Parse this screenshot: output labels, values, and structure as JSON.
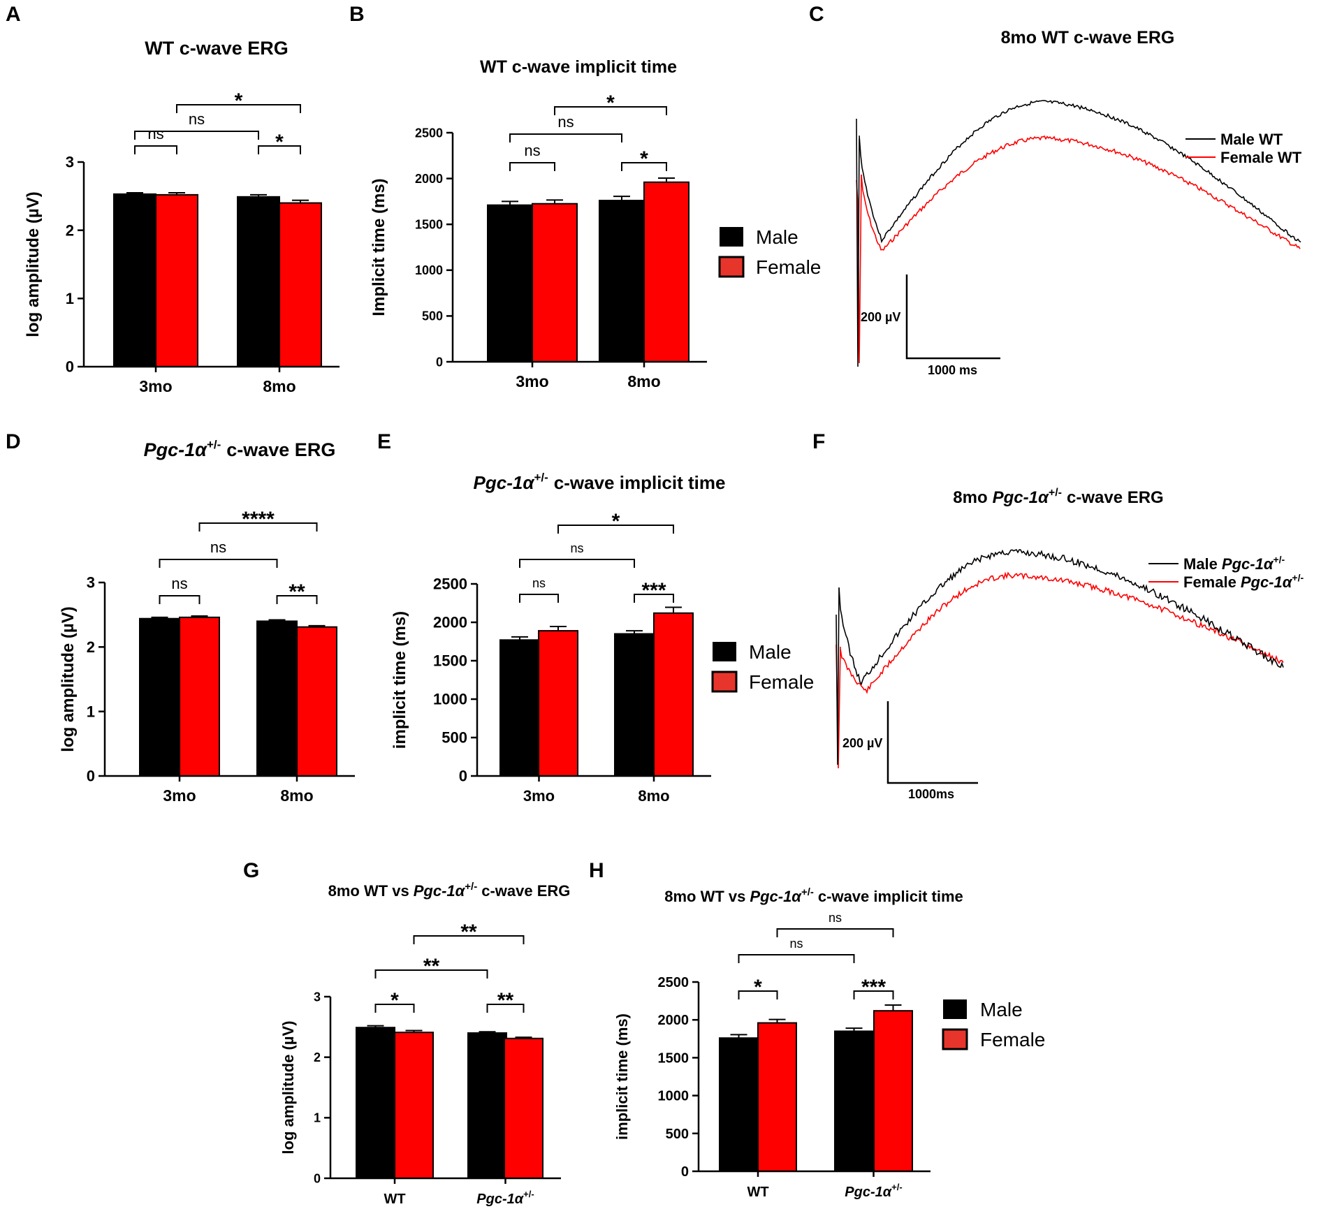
{
  "panel_labels": [
    "A",
    "B",
    "C",
    "D",
    "E",
    "F",
    "G",
    "H"
  ],
  "colors": {
    "male": "#000000",
    "female": "#ff0000",
    "female_legend": "#e8352b"
  },
  "legend": {
    "male": "Male",
    "female": "Female"
  },
  "chart_data": [
    {
      "id": "A",
      "type": "bar",
      "title": "WT c-wave ERG",
      "ylabel": "log amplitude (µV)",
      "ylim": [
        0,
        3
      ],
      "yticks": [
        "0",
        "1",
        "2",
        "3"
      ],
      "categories": [
        "3mo",
        "8mo"
      ],
      "series": [
        {
          "name": "Male",
          "values": [
            2.53,
            2.49
          ],
          "errors": [
            0.02,
            0.03
          ]
        },
        {
          "name": "Female",
          "values": [
            2.52,
            2.4
          ],
          "errors": [
            0.03,
            0.04
          ]
        }
      ],
      "comparisons": [
        {
          "label": "ns",
          "pair": "3mo male vs 3mo female"
        },
        {
          "label": "*",
          "pair": "8mo male vs 8mo female"
        },
        {
          "label": "ns",
          "pair": "3mo male vs 8mo male"
        },
        {
          "label": "*",
          "pair": "3mo female vs 8mo female"
        }
      ]
    },
    {
      "id": "B",
      "type": "bar",
      "title": "WT  c-wave implicit time",
      "ylabel": "Implicit time  (ms)",
      "ylim": [
        0,
        2500
      ],
      "yticks": [
        "0",
        "500",
        "1000",
        "1500",
        "2000",
        "2500"
      ],
      "categories": [
        "3mo",
        "8mo"
      ],
      "series": [
        {
          "name": "Male",
          "values": [
            1710,
            1760
          ],
          "errors": [
            40,
            45
          ]
        },
        {
          "name": "Female",
          "values": [
            1725,
            1960
          ],
          "errors": [
            40,
            45
          ]
        }
      ],
      "comparisons": [
        {
          "label": "ns",
          "pair": "3mo male vs 3mo female"
        },
        {
          "label": "*",
          "pair": "8mo male vs 8mo female"
        },
        {
          "label": "ns",
          "pair": "3mo male vs 8mo male"
        },
        {
          "label": "*",
          "pair": "3mo female vs 8mo female"
        }
      ]
    },
    {
      "id": "C",
      "type": "line",
      "title": "8mo WT c-wave ERG",
      "legend": [
        "Male WT",
        "Female WT"
      ],
      "scalebar": {
        "y": "200 µV",
        "x": "1000 ms"
      }
    },
    {
      "id": "D",
      "type": "bar",
      "title": "c-wave ERG",
      "title_gene": "Pgc-1α",
      "title_sup": "+/-",
      "ylabel": "log amplitude (µV)",
      "ylim": [
        0,
        3
      ],
      "yticks": [
        "0",
        "1",
        "2",
        "3"
      ],
      "categories": [
        "3mo",
        "8mo"
      ],
      "series": [
        {
          "name": "Male",
          "values": [
            2.44,
            2.4
          ],
          "errors": [
            0.02,
            0.02
          ]
        },
        {
          "name": "Female",
          "values": [
            2.46,
            2.31
          ],
          "errors": [
            0.02,
            0.02
          ]
        }
      ],
      "comparisons": [
        {
          "label": "ns",
          "pair": "3mo male vs 3mo female"
        },
        {
          "label": "**",
          "pair": "8mo male vs 8mo female"
        },
        {
          "label": "ns",
          "pair": "3mo male vs 8mo male"
        },
        {
          "label": "****",
          "pair": "3mo female vs 8mo female"
        }
      ]
    },
    {
      "id": "E",
      "type": "bar",
      "title": "c-wave implicit time",
      "title_gene": "Pgc-1α",
      "title_sup": "+/-",
      "ylabel": "implicit time  (ms)",
      "ylim": [
        0,
        2500
      ],
      "yticks": [
        "0",
        "500",
        "1000",
        "1500",
        "2000",
        "2500"
      ],
      "categories": [
        "3mo",
        "8mo"
      ],
      "series": [
        {
          "name": "Male",
          "values": [
            1770,
            1850
          ],
          "errors": [
            40,
            40
          ]
        },
        {
          "name": "Female",
          "values": [
            1890,
            2120
          ],
          "errors": [
            55,
            75
          ]
        }
      ],
      "comparisons": [
        {
          "label": "ns",
          "pair": "3mo male vs 3mo female"
        },
        {
          "label": "***",
          "pair": "8mo male vs 8mo female"
        },
        {
          "label": "ns",
          "pair": "3mo male vs 8mo male"
        },
        {
          "label": "*",
          "pair": "3mo female vs 8mo female"
        }
      ]
    },
    {
      "id": "F",
      "type": "line",
      "title_prefix": "8mo",
      "title_gene": "Pgc-1α",
      "title_sup": "+/-",
      "title_suffix": "c-wave ERG",
      "legend": [
        "Male",
        "Female"
      ],
      "legend_gene": "Pgc-1α",
      "legend_sup": "+/-",
      "scalebar": {
        "y": "200 µV",
        "x": "1000ms"
      }
    },
    {
      "id": "G",
      "type": "bar",
      "title_prefix": "8mo WT vs",
      "title_gene": "Pgc-1α",
      "title_sup": "+/-",
      "title_suffix": "c-wave ERG",
      "ylabel": "log amplitude (µV)",
      "ylim": [
        0,
        3
      ],
      "yticks": [
        "0",
        "1",
        "2",
        "3"
      ],
      "categories": [
        "WT",
        "Pgc-1α"
      ],
      "category_sup": "+/-",
      "series": [
        {
          "name": "Male",
          "values": [
            2.49,
            2.4
          ],
          "errors": [
            0.03,
            0.02
          ]
        },
        {
          "name": "Female",
          "values": [
            2.41,
            2.31
          ],
          "errors": [
            0.03,
            0.02
          ]
        }
      ],
      "comparisons": [
        {
          "label": "*",
          "pair": "WT male vs WT female"
        },
        {
          "label": "**",
          "pair": "Pgc male vs Pgc female"
        },
        {
          "label": "**",
          "pair": "WT male vs Pgc male"
        },
        {
          "label": "**",
          "pair": "WT female vs Pgc female"
        }
      ]
    },
    {
      "id": "H",
      "type": "bar",
      "title_prefix": "8mo WT vs",
      "title_gene": "Pgc-1α",
      "title_sup": "+/-",
      "title_suffix": "c-wave implicit time",
      "ylabel": "implicit time  (ms)",
      "ylim": [
        0,
        2500
      ],
      "yticks": [
        "0",
        "500",
        "1000",
        "1500",
        "2000",
        "2500"
      ],
      "categories": [
        "WT",
        "Pgc-1α"
      ],
      "category_sup": "+/-",
      "series": [
        {
          "name": "Male",
          "values": [
            1760,
            1850
          ],
          "errors": [
            45,
            40
          ]
        },
        {
          "name": "Female",
          "values": [
            1960,
            2120
          ],
          "errors": [
            45,
            75
          ]
        }
      ],
      "comparisons": [
        {
          "label": "*",
          "pair": "WT male vs WT female"
        },
        {
          "label": "***",
          "pair": "Pgc male vs Pgc female"
        },
        {
          "label": "ns",
          "pair": "WT male vs Pgc male"
        },
        {
          "label": "ns",
          "pair": "WT female vs Pgc female"
        }
      ]
    }
  ]
}
